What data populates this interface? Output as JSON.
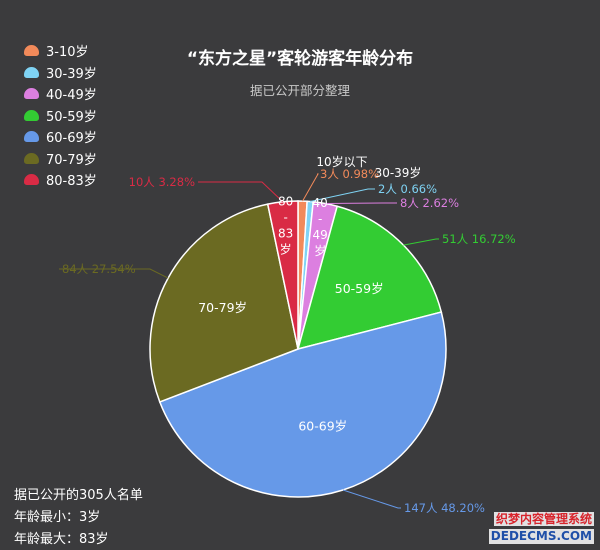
{
  "chart_data": {
    "type": "pie",
    "title": "“东方之星”客轮游客年龄分布",
    "subtitle": "据已公开部分整理",
    "series": [
      {
        "name": "3-10岁",
        "count": 3,
        "percent": 0.98,
        "color": "#f28a5a",
        "value_label": "3人  0.98%",
        "slice_label": "",
        "extra_label": "10岁以下"
      },
      {
        "name": "30-39岁",
        "count": 2,
        "percent": 0.66,
        "color": "#7fd3f4",
        "value_label": "2人  0.66%",
        "slice_label": "",
        "extra_label": "30-39岁"
      },
      {
        "name": "40-49岁",
        "count": 8,
        "percent": 2.62,
        "color": "#dc7fe0",
        "value_label": "8人  2.62%",
        "slice_label": "40-49岁",
        "extra_label": ""
      },
      {
        "name": "50-59岁",
        "count": 51,
        "percent": 16.72,
        "color": "#33cc33",
        "value_label": "51人  16.72%",
        "slice_label": "50-59岁",
        "extra_label": ""
      },
      {
        "name": "60-69岁",
        "count": 147,
        "percent": 48.2,
        "color": "#6699e8",
        "value_label": "147人  48.20%",
        "slice_label": "60-69岁",
        "extra_label": ""
      },
      {
        "name": "70-79岁",
        "count": 84,
        "percent": 27.54,
        "color": "#6b6a22",
        "value_label": "84人  27.54%",
        "slice_label": "70-79岁",
        "extra_label": ""
      },
      {
        "name": "80-83岁",
        "count": 10,
        "percent": 3.28,
        "color": "#d92b45",
        "value_label": "10人  3.28%",
        "slice_label": "80-83岁",
        "extra_label": ""
      }
    ]
  },
  "notes": [
    "据已公开的305人名单",
    "年龄最小：3岁",
    "年龄最大：83岁"
  ],
  "watermark": {
    "line1": "织梦内容管理系统",
    "line2": "DEDECMS.COM"
  }
}
